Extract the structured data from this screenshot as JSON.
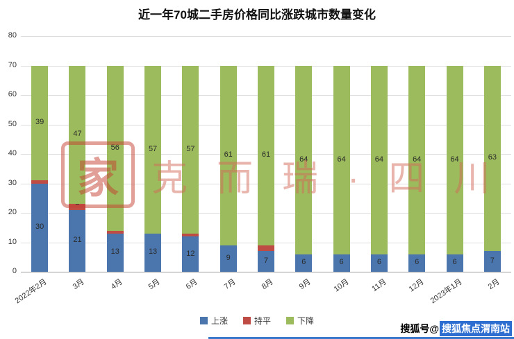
{
  "title": "近一年70城二手房价格同比涨跌城市数量变化",
  "watermark": {
    "seal_char": "家",
    "text": "克而瑞·四川"
  },
  "footer": {
    "prefix": "搜狐号@",
    "account": "搜狐焦点渭南站"
  },
  "colors": {
    "rise": "#4a76ad",
    "flat": "#bf4b45",
    "fall": "#9cbb5c",
    "grid": "#dcdcdc"
  },
  "chart_data": {
    "type": "bar",
    "stacked": true,
    "title": "近一年70城二手房价格同比涨跌城市数量变化",
    "categories": [
      "2022年2月",
      "3月",
      "4月",
      "5月",
      "6月",
      "7月",
      "8月",
      "9月",
      "10月",
      "11月",
      "12月",
      "2023年1月",
      "2月"
    ],
    "series": [
      {
        "name": "上涨",
        "color": "#4a76ad",
        "values": [
          30,
          21,
          13,
          13,
          12,
          9,
          7,
          6,
          6,
          6,
          6,
          6,
          7
        ]
      },
      {
        "name": "持平",
        "color": "#bf4b45",
        "values": [
          1,
          2,
          1,
          0,
          1,
          0,
          2,
          0,
          0,
          0,
          0,
          0,
          0
        ]
      },
      {
        "name": "下降",
        "color": "#9cbb5c",
        "values": [
          39,
          47,
          56,
          57,
          57,
          61,
          61,
          64,
          64,
          64,
          64,
          64,
          63
        ]
      }
    ],
    "ylim": [
      0,
      80
    ],
    "ytick_step": 10,
    "yticks": [
      0,
      10,
      20,
      30,
      40,
      50,
      60,
      70,
      80
    ],
    "grid": true,
    "legend_position": "bottom",
    "data_labels": true
  }
}
